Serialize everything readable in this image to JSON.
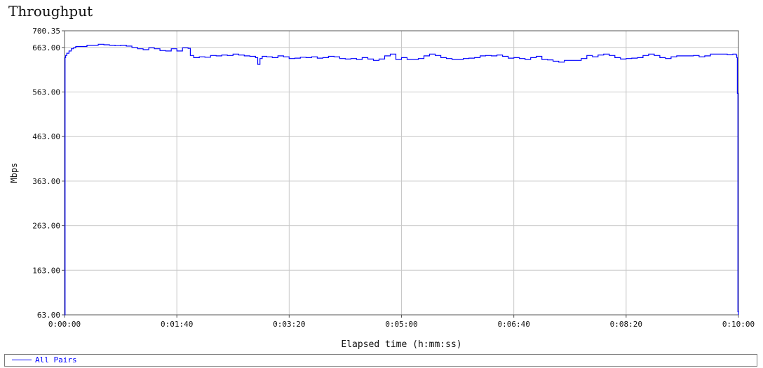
{
  "chart_data": {
    "type": "line",
    "title": "Throughput",
    "xlabel": "Elapsed time (h:mm:ss)",
    "ylabel": "Mbps",
    "xlim": [
      0,
      600
    ],
    "ylim": [
      63.0,
      700.35
    ],
    "x_tick_labels": [
      "0:00:00",
      "0:01:40",
      "0:03:20",
      "0:05:00",
      "0:06:40",
      "0:08:20",
      "0:10:00"
    ],
    "x_ticks": [
      0,
      100,
      200,
      300,
      400,
      500,
      600
    ],
    "y_tick_labels": [
      "63.00",
      "163.00",
      "263.00",
      "363.00",
      "463.00",
      "563.00",
      "663.00",
      "700.35"
    ],
    "y_ticks": [
      63,
      163,
      263,
      363,
      463,
      563,
      663,
      700.35
    ],
    "grid": true,
    "legend_position": "bottom",
    "series": [
      {
        "name": "All Pairs",
        "color": "#0000ff",
        "x": [
          0,
          0.5,
          1,
          2,
          4,
          6,
          8,
          10,
          15,
          20,
          25,
          30,
          35,
          40,
          45,
          50,
          55,
          60,
          65,
          70,
          75,
          80,
          85,
          90,
          95,
          100,
          105,
          110,
          112,
          115,
          120,
          125,
          130,
          135,
          140,
          145,
          150,
          155,
          160,
          165,
          170,
          172,
          174,
          176,
          180,
          185,
          190,
          195,
          200,
          205,
          210,
          215,
          220,
          225,
          230,
          235,
          240,
          245,
          250,
          255,
          260,
          265,
          270,
          275,
          280,
          285,
          290,
          295,
          300,
          305,
          310,
          315,
          320,
          325,
          330,
          335,
          340,
          345,
          350,
          355,
          360,
          365,
          370,
          375,
          380,
          385,
          390,
          395,
          400,
          405,
          410,
          415,
          420,
          425,
          430,
          435,
          440,
          445,
          450,
          455,
          460,
          465,
          470,
          475,
          480,
          485,
          490,
          495,
          500,
          505,
          510,
          515,
          520,
          525,
          530,
          535,
          540,
          545,
          550,
          555,
          560,
          565,
          570,
          575,
          580,
          585,
          590,
          595,
          598,
          598.5,
          599,
          599.5,
          600
        ],
        "values": [
          63,
          640,
          645,
          650,
          655,
          660,
          662,
          665,
          665,
          668,
          668,
          670,
          669,
          668,
          667,
          668,
          666,
          663,
          660,
          658,
          662,
          660,
          656,
          655,
          660,
          655,
          662,
          661,
          645,
          640,
          642,
          641,
          645,
          644,
          646,
          645,
          648,
          646,
          644,
          643,
          640,
          625,
          638,
          643,
          642,
          640,
          644,
          642,
          638,
          639,
          641,
          640,
          642,
          639,
          640,
          643,
          642,
          638,
          637,
          638,
          636,
          640,
          637,
          634,
          637,
          644,
          648,
          636,
          640,
          636,
          636,
          638,
          644,
          648,
          645,
          640,
          638,
          636,
          636,
          638,
          639,
          640,
          644,
          645,
          644,
          646,
          643,
          639,
          640,
          638,
          636,
          640,
          643,
          636,
          635,
          632,
          630,
          634,
          634,
          634,
          638,
          645,
          642,
          646,
          648,
          645,
          640,
          637,
          638,
          639,
          640,
          645,
          648,
          645,
          640,
          638,
          642,
          644,
          644,
          644,
          645,
          642,
          644,
          648,
          648,
          648,
          647,
          648,
          646,
          640,
          560,
          70,
          63
        ]
      }
    ]
  }
}
